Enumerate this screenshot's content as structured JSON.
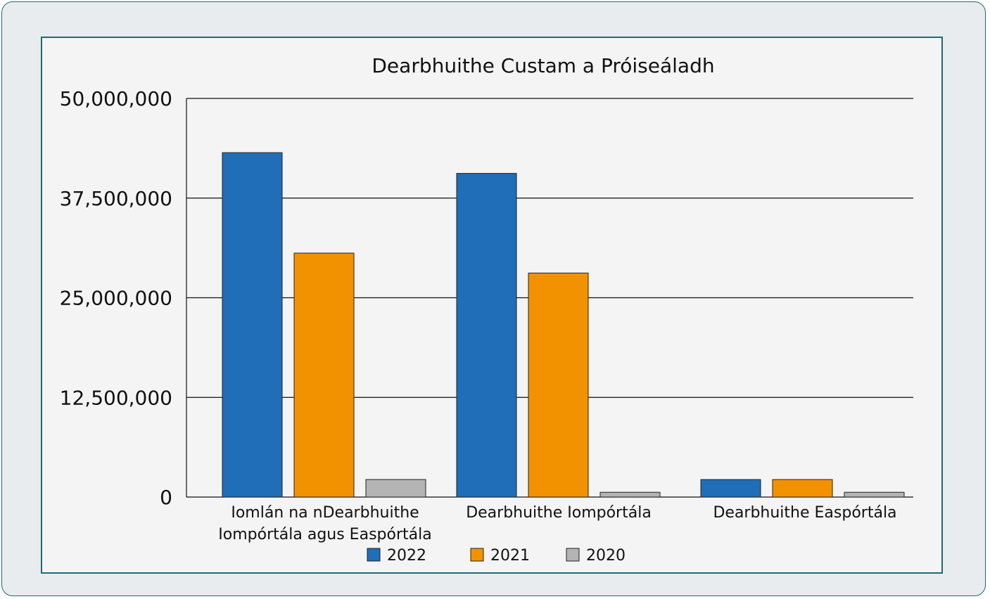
{
  "chart_data": {
    "type": "bar",
    "title": "Dearbhuithe Custam a Próiseáladh",
    "xlabel": "",
    "ylabel": "",
    "ylim": [
      0,
      50000000
    ],
    "yticks": [
      0,
      12500000,
      25000000,
      37500000,
      50000000
    ],
    "ytick_labels": [
      "0",
      "12,500,000",
      "25,000,000",
      "37,500,000",
      "50,000,000"
    ],
    "categories": [
      [
        "Iomlán na nDearbhuithe",
        "Iompórtála agus Easpórtála"
      ],
      [
        "Dearbhuithe Iompórtála"
      ],
      [
        "Dearbhuithe Easpórtála"
      ]
    ],
    "series": [
      {
        "name": "2022",
        "color": "#1f6eb7",
        "values": [
          43200000,
          40600000,
          2200000
        ]
      },
      {
        "name": "2021",
        "color": "#f39200",
        "values": [
          30600000,
          28100000,
          2200000
        ]
      },
      {
        "name": "2020",
        "color": "#b4b4b4",
        "values": [
          2200000,
          600000,
          600000
        ]
      }
    ],
    "grid": true,
    "legend_position": "bottom"
  }
}
